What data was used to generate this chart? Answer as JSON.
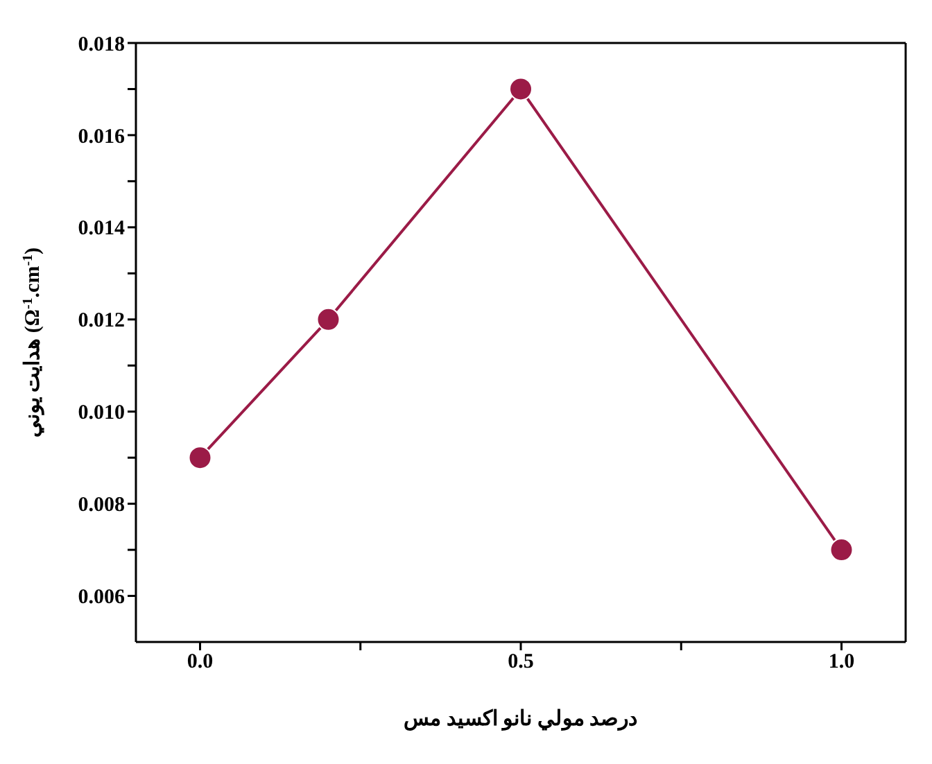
{
  "chart_data": {
    "type": "line",
    "xlabel": "درصد مولي نانو اكسيد مس",
    "ylabel": "هدايت يوني (Ω$^{-1}$.cm$^{-1}$)",
    "x": [
      0,
      0.2,
      0.5,
      1.0
    ],
    "series": [
      {
        "color": "#9b1b47",
        "values": [
          0.009,
          0.012,
          0.017,
          0.007
        ]
      }
    ],
    "xlim": [
      -0.1,
      1.1
    ],
    "xticks": [
      {
        "value": 0,
        "label": "0.0"
      },
      {
        "value": 0.25,
        "label": null
      },
      {
        "value": 0.5,
        "label": "0.5"
      },
      {
        "value": 0.75,
        "label": null
      },
      {
        "value": 1,
        "label": "1.0"
      }
    ],
    "ylim": [
      0.005,
      0.018
    ],
    "yticks": [
      {
        "value": 0.006,
        "label": "0.006"
      },
      {
        "value": 0.007,
        "label": null
      },
      {
        "value": 0.008,
        "label": "0.008"
      },
      {
        "value": 0.009,
        "label": null
      },
      {
        "value": 0.01,
        "label": "0.010"
      },
      {
        "value": 0.011,
        "label": null
      },
      {
        "value": 0.012,
        "label": "0.012"
      },
      {
        "value": 0.013,
        "label": null
      },
      {
        "value": 0.014,
        "label": "0.014"
      },
      {
        "value": 0.015,
        "label": null
      },
      {
        "value": 0.016,
        "label": "0.016"
      },
      {
        "value": 0.017,
        "label": null
      },
      {
        "value": 0.018,
        "label": "0.018"
      }
    ],
    "grid": false,
    "legend": false,
    "marker": "circle",
    "line_style": "solid"
  }
}
